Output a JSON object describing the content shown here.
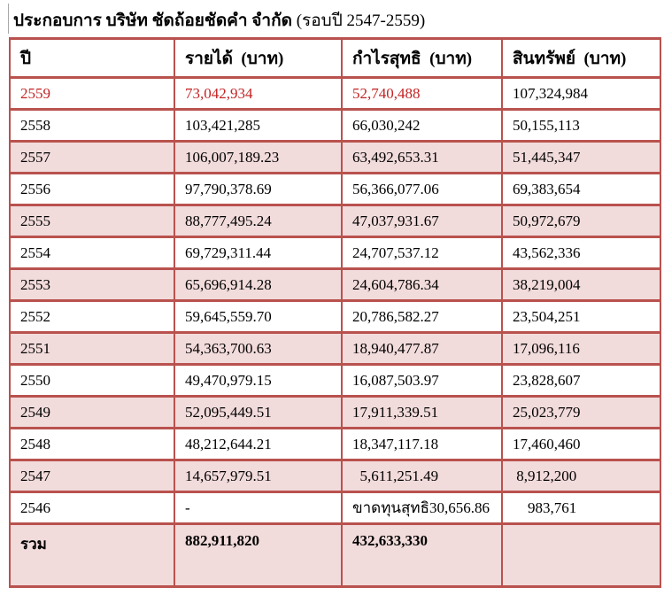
{
  "title": {
    "company_part": "ประกอบการ บริษัท ชัดถ้อยชัดคำ จำกัด ",
    "period_part": "(รอบปี 2547-2559)"
  },
  "colors": {
    "table_border": "#b9524e",
    "row_band": "#f2dbdb",
    "highlight_text": "#c32323"
  },
  "table": {
    "headers": [
      "ปี",
      "รายได้  (บาท)",
      "กำไรสุทธิ  (บาท)",
      "สินทรัพย์  (บาท)"
    ],
    "rows": [
      {
        "year": "2559",
        "revenue": "73,042,934",
        "profit": "52,740,488",
        "assets": "107,324,984",
        "highlight": true,
        "band": false
      },
      {
        "year": "2558",
        "revenue": "103,421,285",
        "profit": "66,030,242",
        "assets": "50,155,113",
        "highlight": false,
        "band": false
      },
      {
        "year": "2557",
        "revenue": "106,007,189.23",
        "profit": "63,492,653.31",
        "assets": "51,445,347",
        "highlight": false,
        "band": true
      },
      {
        "year": "2556",
        "revenue": "97,790,378.69",
        "profit": "56,366,077.06",
        "assets": "69,383,654",
        "highlight": false,
        "band": false
      },
      {
        "year": "2555",
        "revenue": "88,777,495.24",
        "profit": "47,037,931.67",
        "assets": "50,972,679",
        "highlight": false,
        "band": true
      },
      {
        "year": "2554",
        "revenue": "69,729,311.44",
        "profit": "24,707,537.12",
        "assets": "43,562,336",
        "highlight": false,
        "band": false
      },
      {
        "year": "2553",
        "revenue": "65,696,914.28",
        "profit": "24,604,786.34",
        "assets": "38,219,004",
        "highlight": false,
        "band": true
      },
      {
        "year": "2552",
        "revenue": "59,645,559.70",
        "profit": "20,786,582.27",
        "assets": "23,504,251",
        "highlight": false,
        "band": false
      },
      {
        "year": "2551",
        "revenue": "54,363,700.63",
        "profit": "18,940,477.87",
        "assets": "17,096,116",
        "highlight": false,
        "band": true
      },
      {
        "year": "2550",
        "revenue": "49,470,979.15",
        "profit": "16,087,503.97",
        "assets": "23,828,607",
        "highlight": false,
        "band": false
      },
      {
        "year": "2549",
        "revenue": "52,095,449.51",
        "profit": "17,911,339.51",
        "assets": "25,023,779",
        "highlight": false,
        "band": true
      },
      {
        "year": "2548",
        "revenue": "48,212,644.21",
        "profit": "18,347,117.18",
        "assets": "17,460,460",
        "highlight": false,
        "band": false
      },
      {
        "year": "2547",
        "revenue": "14,657,979.51",
        "profit": "  5,611,251.49",
        "assets": " 8,912,200",
        "highlight": false,
        "band": true
      },
      {
        "year": "2546",
        "revenue": "-",
        "profit": "ขาดทุนสุทธิ30,656.86",
        "assets": "    983,761",
        "highlight": false,
        "band": false
      }
    ],
    "total": {
      "label": "รวม",
      "revenue": "882,911,820",
      "profit": "432,633,330",
      "assets": ""
    }
  }
}
